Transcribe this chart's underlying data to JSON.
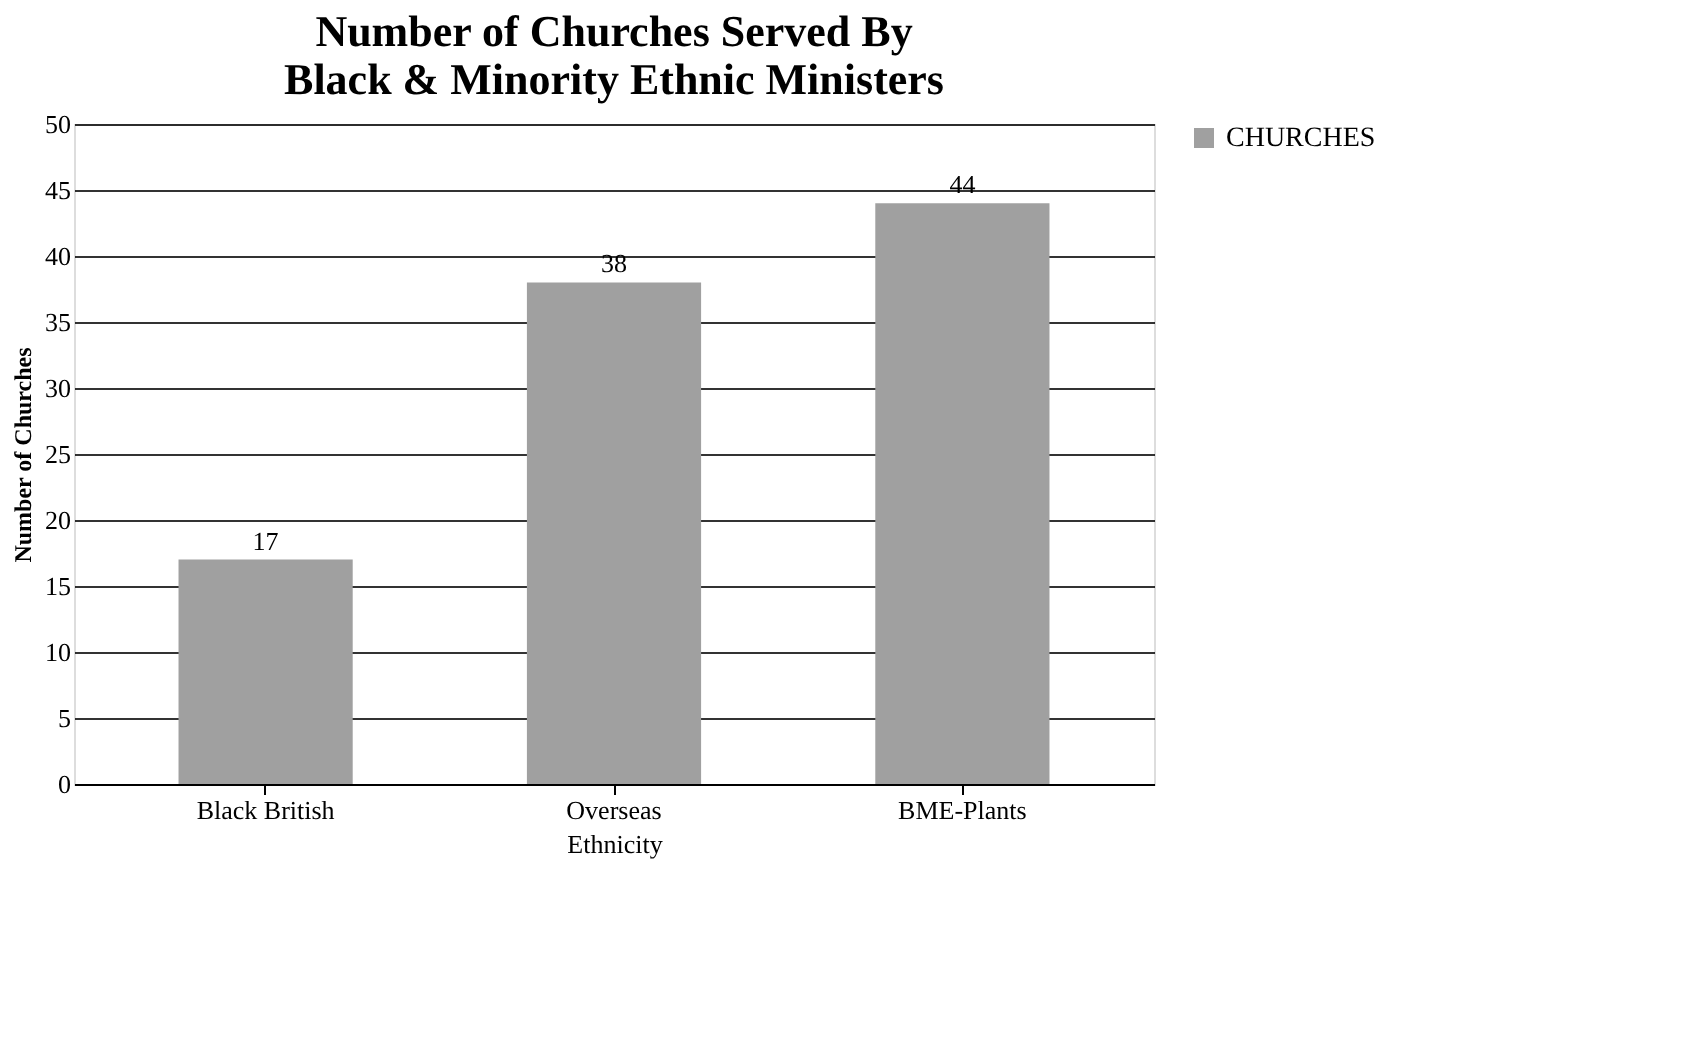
{
  "chart_data": {
    "type": "bar",
    "title": "Number of Churches Served By Black & Minority Ethnic Ministers",
    "xlabel": "Ethnicity",
    "ylabel": "Number of Churches",
    "categories": [
      "Black British",
      "Overseas",
      "BME-Plants"
    ],
    "series": [
      {
        "name": "CHURCHES",
        "color": "#a0a0a0",
        "values": [
          17,
          38,
          44
        ]
      }
    ],
    "ylim": [
      0,
      50
    ],
    "yticks": [
      0,
      5,
      10,
      15,
      20,
      25,
      30,
      35,
      40,
      45,
      50
    ],
    "grid": "y",
    "legend": "right",
    "data_labels": true
  }
}
